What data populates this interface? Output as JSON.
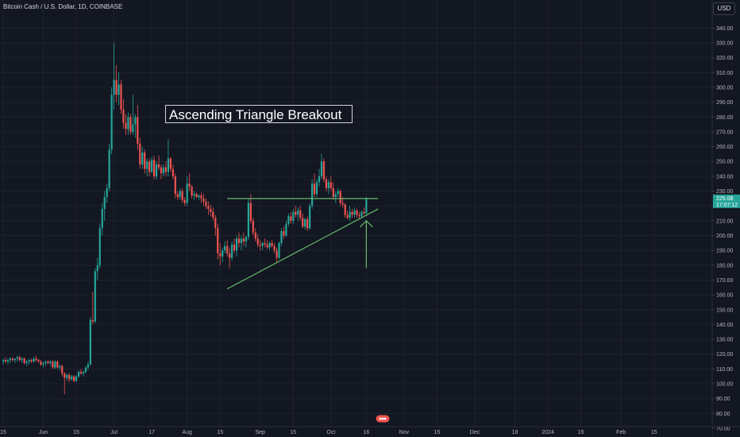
{
  "header": {
    "title": "Bitcoin Cash / U.S. Dollar, 1D, COINBASE",
    "currency": "USD"
  },
  "chart_data": {
    "type": "candlestick",
    "title": "Bitcoin Cash / U.S. Dollar, 1D, COINBASE",
    "ylabel": "USD",
    "ylim": [
      70,
      345
    ],
    "grid": true,
    "y_ticks": [
      70,
      80,
      90,
      100,
      110,
      120,
      130,
      140,
      150,
      160,
      170,
      180,
      190,
      200,
      210,
      220,
      230,
      240,
      250,
      260,
      270,
      280,
      290,
      300,
      310,
      320,
      330,
      340
    ],
    "x_ticks": [
      {
        "label": "15",
        "date": "2023-05-15"
      },
      {
        "label": "Jun",
        "date": "2023-06-01"
      },
      {
        "label": "15",
        "date": "2023-06-15"
      },
      {
        "label": "Jul",
        "date": "2023-07-01"
      },
      {
        "label": "17",
        "date": "2023-07-17"
      },
      {
        "label": "Aug",
        "date": "2023-08-01"
      },
      {
        "label": "15",
        "date": "2023-08-15"
      },
      {
        "label": "Sep",
        "date": "2023-09-01"
      },
      {
        "label": "15",
        "date": "2023-09-15"
      },
      {
        "label": "Oct",
        "date": "2023-10-01"
      },
      {
        "label": "16",
        "date": "2023-10-16"
      },
      {
        "label": "Nov",
        "date": "2023-11-01"
      },
      {
        "label": "15",
        "date": "2023-11-15"
      },
      {
        "label": "Dec",
        "date": "2023-12-01"
      },
      {
        "label": "18",
        "date": "2023-12-18"
      },
      {
        "label": "2024",
        "date": "2024-01-01"
      },
      {
        "label": "15",
        "date": "2024-01-15"
      },
      {
        "label": "Feb",
        "date": "2024-02-01"
      },
      {
        "label": "15",
        "date": "2024-02-15"
      }
    ],
    "last_price": {
      "value": "225.08",
      "countdown": "17:07:12"
    },
    "annotation": {
      "text": "Ascending Triangle Breakout"
    },
    "resistance_line": {
      "from": [
        "2023-08-18",
        225
      ],
      "to": [
        "2023-10-21",
        225
      ]
    },
    "support_line": {
      "from": [
        "2023-08-18",
        164
      ],
      "to": [
        "2023-10-21",
        218
      ]
    },
    "arrow": {
      "date": "2023-10-16",
      "from": 178,
      "to": 210
    },
    "candles": [
      [
        "2023-05-15",
        115,
        117,
        113,
        116
      ],
      [
        "2023-05-16",
        116,
        118,
        114,
        115
      ],
      [
        "2023-05-17",
        115,
        117,
        113,
        116
      ],
      [
        "2023-05-18",
        116,
        118,
        114,
        117
      ],
      [
        "2023-05-19",
        117,
        118,
        115,
        116
      ],
      [
        "2023-05-20",
        116,
        117,
        114,
        117
      ],
      [
        "2023-05-21",
        117,
        119,
        115,
        118
      ],
      [
        "2023-05-22",
        118,
        119,
        115,
        116
      ],
      [
        "2023-05-23",
        116,
        118,
        114,
        117
      ],
      [
        "2023-05-24",
        117,
        118,
        113,
        114
      ],
      [
        "2023-05-25",
        114,
        116,
        112,
        115
      ],
      [
        "2023-05-26",
        115,
        117,
        113,
        116
      ],
      [
        "2023-05-27",
        116,
        117,
        114,
        115
      ],
      [
        "2023-05-28",
        115,
        118,
        114,
        117
      ],
      [
        "2023-05-29",
        117,
        119,
        115,
        116
      ],
      [
        "2023-05-30",
        116,
        117,
        114,
        115
      ],
      [
        "2023-05-31",
        115,
        116,
        112,
        113
      ],
      [
        "2023-06-01",
        113,
        115,
        111,
        114
      ],
      [
        "2023-06-02",
        114,
        116,
        112,
        115
      ],
      [
        "2023-06-03",
        115,
        116,
        113,
        114
      ],
      [
        "2023-06-04",
        114,
        116,
        112,
        115
      ],
      [
        "2023-06-05",
        115,
        116,
        110,
        111
      ],
      [
        "2023-06-06",
        111,
        116,
        110,
        115
      ],
      [
        "2023-06-07",
        115,
        116,
        110,
        111
      ],
      [
        "2023-06-08",
        111,
        113,
        109,
        112
      ],
      [
        "2023-06-09",
        112,
        113,
        105,
        107
      ],
      [
        "2023-06-10",
        107,
        108,
        93,
        104
      ],
      [
        "2023-06-11",
        104,
        107,
        102,
        106
      ],
      [
        "2023-06-12",
        106,
        107,
        101,
        103
      ],
      [
        "2023-06-13",
        103,
        106,
        102,
        105
      ],
      [
        "2023-06-14",
        105,
        106,
        101,
        102
      ],
      [
        "2023-06-15",
        102,
        106,
        101,
        105
      ],
      [
        "2023-06-16",
        105,
        109,
        104,
        108
      ],
      [
        "2023-06-17",
        108,
        110,
        106,
        107
      ],
      [
        "2023-06-18",
        107,
        109,
        105,
        108
      ],
      [
        "2023-06-19",
        108,
        112,
        107,
        111
      ],
      [
        "2023-06-20",
        111,
        115,
        109,
        113
      ],
      [
        "2023-06-21",
        113,
        145,
        112,
        143
      ],
      [
        "2023-06-22",
        143,
        162,
        140,
        142
      ],
      [
        "2023-06-23",
        142,
        178,
        141,
        176
      ],
      [
        "2023-06-24",
        176,
        185,
        170,
        180
      ],
      [
        "2023-06-25",
        180,
        208,
        178,
        205
      ],
      [
        "2023-06-26",
        205,
        222,
        200,
        218
      ],
      [
        "2023-06-27",
        218,
        230,
        210,
        226
      ],
      [
        "2023-06-28",
        226,
        235,
        222,
        232
      ],
      [
        "2023-06-29",
        232,
        262,
        230,
        258
      ],
      [
        "2023-06-30",
        258,
        300,
        255,
        295
      ],
      [
        "2023-07-01",
        295,
        330,
        285,
        305
      ],
      [
        "2023-07-02",
        305,
        315,
        290,
        295
      ],
      [
        "2023-07-03",
        295,
        310,
        288,
        302
      ],
      [
        "2023-07-04",
        302,
        305,
        282,
        285
      ],
      [
        "2023-07-05",
        285,
        292,
        272,
        276
      ],
      [
        "2023-07-06",
        276,
        282,
        268,
        272
      ],
      [
        "2023-07-07",
        272,
        283,
        268,
        280
      ],
      [
        "2023-07-08",
        280,
        282,
        268,
        270
      ],
      [
        "2023-07-09",
        270,
        295,
        268,
        275
      ],
      [
        "2023-07-10",
        275,
        282,
        266,
        280
      ],
      [
        "2023-07-11",
        280,
        288,
        258,
        262
      ],
      [
        "2023-07-12",
        262,
        266,
        245,
        248
      ],
      [
        "2023-07-13",
        248,
        260,
        245,
        256
      ],
      [
        "2023-07-14",
        256,
        258,
        242,
        245
      ],
      [
        "2023-07-15",
        245,
        252,
        240,
        250
      ],
      [
        "2023-07-16",
        250,
        252,
        240,
        243
      ],
      [
        "2023-07-17",
        243,
        253,
        242,
        251
      ],
      [
        "2023-07-18",
        251,
        254,
        238,
        240
      ],
      [
        "2023-07-19",
        240,
        250,
        238,
        248
      ],
      [
        "2023-07-20",
        248,
        254,
        244,
        246
      ],
      [
        "2023-07-21",
        246,
        248,
        238,
        242
      ],
      [
        "2023-07-22",
        242,
        248,
        240,
        246
      ],
      [
        "2023-07-23",
        246,
        250,
        240,
        243
      ],
      [
        "2023-07-24",
        243,
        265,
        240,
        252
      ],
      [
        "2023-07-25",
        252,
        253,
        243,
        245
      ],
      [
        "2023-07-26",
        245,
        248,
        238,
        240
      ],
      [
        "2023-07-27",
        240,
        242,
        225,
        228
      ],
      [
        "2023-07-28",
        228,
        230,
        224,
        226
      ],
      [
        "2023-07-29",
        226,
        232,
        224,
        230
      ],
      [
        "2023-07-30",
        230,
        232,
        222,
        224
      ],
      [
        "2023-07-31",
        224,
        226,
        220,
        222
      ],
      [
        "2023-08-01",
        222,
        240,
        220,
        235
      ],
      [
        "2023-08-02",
        235,
        242,
        230,
        233
      ],
      [
        "2023-08-03",
        233,
        234,
        225,
        227
      ],
      [
        "2023-08-04",
        227,
        230,
        224,
        228
      ],
      [
        "2023-08-05",
        228,
        229,
        225,
        226
      ],
      [
        "2023-08-06",
        226,
        228,
        224,
        227
      ],
      [
        "2023-08-07",
        227,
        229,
        222,
        225
      ],
      [
        "2023-08-08",
        225,
        228,
        220,
        223
      ],
      [
        "2023-08-09",
        223,
        225,
        218,
        220
      ],
      [
        "2023-08-10",
        220,
        223,
        214,
        218
      ],
      [
        "2023-08-11",
        218,
        221,
        213,
        216
      ],
      [
        "2023-08-12",
        216,
        219,
        210,
        212
      ],
      [
        "2023-08-13",
        212,
        214,
        200,
        205
      ],
      [
        "2023-08-14",
        205,
        208,
        184,
        188
      ],
      [
        "2023-08-15",
        188,
        195,
        180,
        186
      ],
      [
        "2023-08-16",
        186,
        192,
        182,
        190
      ],
      [
        "2023-08-17",
        190,
        196,
        188,
        193
      ],
      [
        "2023-08-18",
        193,
        197,
        186,
        188
      ],
      [
        "2023-08-19",
        188,
        192,
        178,
        185
      ],
      [
        "2023-08-20",
        185,
        196,
        183,
        194
      ],
      [
        "2023-08-21",
        194,
        198,
        188,
        190
      ],
      [
        "2023-08-22",
        190,
        200,
        186,
        198
      ],
      [
        "2023-08-23",
        198,
        202,
        192,
        195
      ],
      [
        "2023-08-24",
        195,
        200,
        190,
        198
      ],
      [
        "2023-08-25",
        198,
        202,
        193,
        196
      ],
      [
        "2023-08-26",
        196,
        200,
        192,
        199
      ],
      [
        "2023-08-27",
        199,
        225,
        197,
        222
      ],
      [
        "2023-08-28",
        222,
        228,
        208,
        210
      ],
      [
        "2023-08-29",
        210,
        212,
        200,
        202
      ],
      [
        "2023-08-30",
        202,
        205,
        196,
        198
      ],
      [
        "2023-08-31",
        198,
        201,
        192,
        194
      ],
      [
        "2023-09-01",
        194,
        197,
        190,
        193
      ],
      [
        "2023-09-02",
        193,
        196,
        190,
        195
      ],
      [
        "2023-09-03",
        195,
        198,
        192,
        194
      ],
      [
        "2023-09-04",
        194,
        197,
        191,
        192
      ],
      [
        "2023-09-05",
        192,
        196,
        190,
        195
      ],
      [
        "2023-09-06",
        195,
        197,
        192,
        193
      ],
      [
        "2023-09-07",
        193,
        195,
        188,
        190
      ],
      [
        "2023-09-08",
        190,
        192,
        182,
        185
      ],
      [
        "2023-09-09",
        185,
        196,
        184,
        195
      ],
      [
        "2023-09-10",
        195,
        205,
        193,
        203
      ],
      [
        "2023-09-11",
        203,
        206,
        198,
        200
      ],
      [
        "2023-09-12",
        200,
        210,
        199,
        208
      ],
      [
        "2023-09-13",
        208,
        215,
        206,
        213
      ],
      [
        "2023-09-14",
        213,
        216,
        208,
        210
      ],
      [
        "2023-09-15",
        210,
        218,
        208,
        216
      ],
      [
        "2023-09-16",
        216,
        220,
        212,
        214
      ],
      [
        "2023-09-17",
        214,
        219,
        210,
        217
      ],
      [
        "2023-09-18",
        217,
        220,
        210,
        212
      ],
      [
        "2023-09-19",
        212,
        215,
        205,
        206
      ],
      [
        "2023-09-20",
        206,
        212,
        204,
        211
      ],
      [
        "2023-09-21",
        211,
        213,
        203,
        205
      ],
      [
        "2023-09-22",
        205,
        222,
        204,
        220
      ],
      [
        "2023-09-23",
        220,
        238,
        218,
        235
      ],
      [
        "2023-09-24",
        235,
        242,
        226,
        228
      ],
      [
        "2023-09-25",
        228,
        238,
        226,
        236
      ],
      [
        "2023-09-26",
        236,
        245,
        233,
        240
      ],
      [
        "2023-09-27",
        240,
        255,
        238,
        250
      ],
      [
        "2023-09-28",
        250,
        252,
        236,
        238
      ],
      [
        "2023-09-29",
        238,
        240,
        230,
        232
      ],
      [
        "2023-09-30",
        232,
        238,
        228,
        236
      ],
      [
        "2023-10-01",
        236,
        240,
        230,
        232
      ],
      [
        "2023-10-02",
        232,
        236,
        224,
        226
      ],
      [
        "2023-10-03",
        226,
        230,
        222,
        228
      ],
      [
        "2023-10-04",
        228,
        232,
        226,
        230
      ],
      [
        "2023-10-05",
        230,
        231,
        220,
        222
      ],
      [
        "2023-10-06",
        222,
        226,
        219,
        221
      ],
      [
        "2023-10-07",
        221,
        222,
        212,
        214
      ],
      [
        "2023-10-08",
        214,
        217,
        211,
        212
      ],
      [
        "2023-10-09",
        212,
        220,
        210,
        216
      ],
      [
        "2023-10-10",
        216,
        218,
        212,
        214
      ],
      [
        "2023-10-11",
        214,
        219,
        212,
        217
      ],
      [
        "2023-10-12",
        217,
        218,
        212,
        214
      ],
      [
        "2023-10-13",
        214,
        216,
        211,
        213
      ],
      [
        "2023-10-14",
        213,
        217,
        212,
        216
      ],
      [
        "2023-10-15",
        216,
        219,
        214,
        215
      ],
      [
        "2023-10-16",
        215,
        226,
        213,
        225
      ]
    ]
  }
}
